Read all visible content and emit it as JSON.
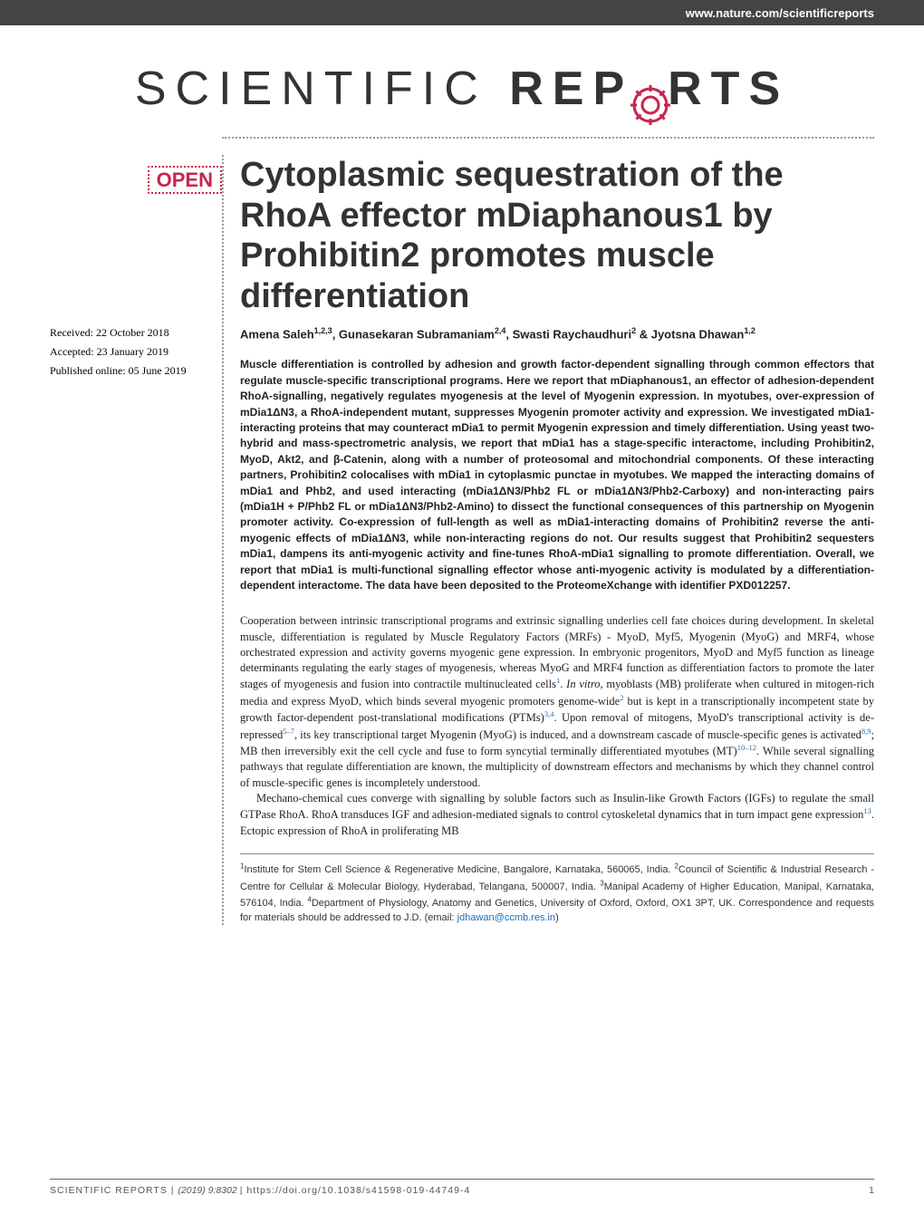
{
  "header": {
    "url": "www.nature.com/scientificreports"
  },
  "journal": {
    "logo_part1": "SCIENTIFIC ",
    "logo_part2": "REP",
    "logo_part3": "RTS"
  },
  "badge": {
    "open_label": "OPEN"
  },
  "dates": {
    "received": "Received: 22 October 2018",
    "accepted": "Accepted: 23 January 2019",
    "published": "Published online: 05 June 2019"
  },
  "article": {
    "title": "Cytoplasmic sequestration of the RhoA effector mDiaphanous1 by Prohibitin2 promotes muscle differentiation",
    "authors_html": "Amena Saleh<sup>1,2,3</sup>, Gunasekaran Subramaniam<sup>2,4</sup>, Swasti Raychaudhuri<sup>2</sup> & Jyotsna Dhawan<sup>1,2</sup>"
  },
  "abstract": {
    "text": "Muscle differentiation is controlled by adhesion and growth factor-dependent signalling through common effectors that regulate muscle-specific transcriptional programs. Here we report that mDiaphanous1, an effector of adhesion-dependent RhoA-signalling, negatively regulates myogenesis at the level of Myogenin expression. In myotubes, over-expression of mDia1ΔN3, a RhoA-independent mutant, suppresses Myogenin promoter activity and expression. We investigated mDia1-interacting proteins that may counteract mDia1 to permit Myogenin expression and timely differentiation. Using yeast two-hybrid and mass-spectrometric analysis, we report that mDia1 has a stage-specific interactome, including Prohibitin2, MyoD, Akt2, and β-Catenin, along with a number of proteosomal and mitochondrial components. Of these interacting partners, Prohibitin2 colocalises with mDia1 in cytoplasmic punctae in myotubes. We mapped the interacting domains of mDia1 and Phb2, and used interacting (mDia1ΔN3/Phb2 FL or mDia1ΔN3/Phb2-Carboxy) and non-interacting pairs (mDia1H + P/Phb2 FL or mDia1ΔN3/Phb2-Amino) to dissect the functional consequences of this partnership on Myogenin promoter activity. Co-expression of full-length as well as mDia1-interacting domains of Prohibitin2 reverse the anti-myogenic effects of mDia1ΔN3, while non-interacting regions do not. Our results suggest that Prohibitin2 sequesters mDia1, dampens its anti-myogenic activity and fine-tunes RhoA-mDia1 signalling to promote differentiation. Overall, we report that mDia1 is multi-functional signalling effector whose anti-myogenic activity is modulated by a differentiation-dependent interactome. The data have been deposited to the ProteomeXchange with identifier PXD012257."
  },
  "body": {
    "para1": "Cooperation between intrinsic transcriptional programs and extrinsic signalling underlies cell fate choices during development. In skeletal muscle, differentiation is regulated by Muscle Regulatory Factors (MRFs) - MyoD, Myf5, Myogenin (MyoG) and MRF4, whose orchestrated expression and activity governs myogenic gene expression. In embryonic progenitors, MyoD and Myf5 function as lineage determinants regulating the early stages of myogenesis, whereas MyoG and MRF4 function as differentiation factors to promote the later stages of myogenesis and fusion into contractile multinucleated cells",
    "ref1": "1",
    "para1b": ". <em>In vitro</em>, myoblasts (MB) proliferate when cultured in mitogen-rich media and express MyoD, which binds several myogenic promoters genome-wide",
    "ref2": "2",
    "para1c": " but is kept in a transcriptionally incompetent state by growth factor-dependent post-translational modifications (PTMs)",
    "ref34": "3,4",
    "para1d": ". Upon removal of mitogens, MyoD's transcriptional activity is de-repressed",
    "ref57": "5–7",
    "para1e": ", its key transcriptional target Myogenin (MyoG) is induced, and a downstream cascade of muscle-specific genes is activated",
    "ref89": "8,9",
    "para1f": "; MB then irreversibly exit the cell cycle and fuse to form syncytial terminally differentiated myotubes (MT)",
    "ref1012": "10–12",
    "para1g": ". While several signalling pathways that regulate differentiation are known, the multiplicity of downstream effectors and mechanisms by which they channel control of muscle-specific genes is incompletely understood.",
    "para2": "Mechano-chemical cues converge with signalling by soluble factors such as Insulin-like Growth Factors (IGFs) to regulate the small GTPase RhoA. RhoA transduces IGF and adhesion-mediated signals to control cytoskeletal dynamics that in turn impact gene expression",
    "ref13": "13",
    "para2b": ". Ectopic expression of RhoA in proliferating MB"
  },
  "affiliations": {
    "text_html": "<sup>1</sup>Institute for Stem Cell Science & Regenerative Medicine, Bangalore, Karnataka, 560065, India. <sup>2</sup>Council of Scientific & Industrial Research -Centre for Cellular & Molecular Biology, Hyderabad, Telangana, 500007, India. <sup>3</sup>Manipal Academy of Higher Education, Manipal, Karnataka, 576104, India. <sup>4</sup>Department of Physiology, Anatomy and Genetics, University of Oxford, Oxford, OX1 3PT, UK. Correspondence and requests for materials should be addressed to J.D. (email: ",
    "email": "jdhawan@ccmb.res.in",
    "close": ")"
  },
  "footer": {
    "journal": "SCIENTIFIC REPORTS",
    "separator": " | ",
    "details": "(2019) 9:8302 ",
    "doi": "| https://doi.org/10.1038/s41598-019-44749-4",
    "page": "1"
  },
  "colors": {
    "header_bg": "#444444",
    "accent": "#c7254e",
    "link": "#1a6bb5",
    "text": "#222222",
    "divider": "#999999"
  }
}
